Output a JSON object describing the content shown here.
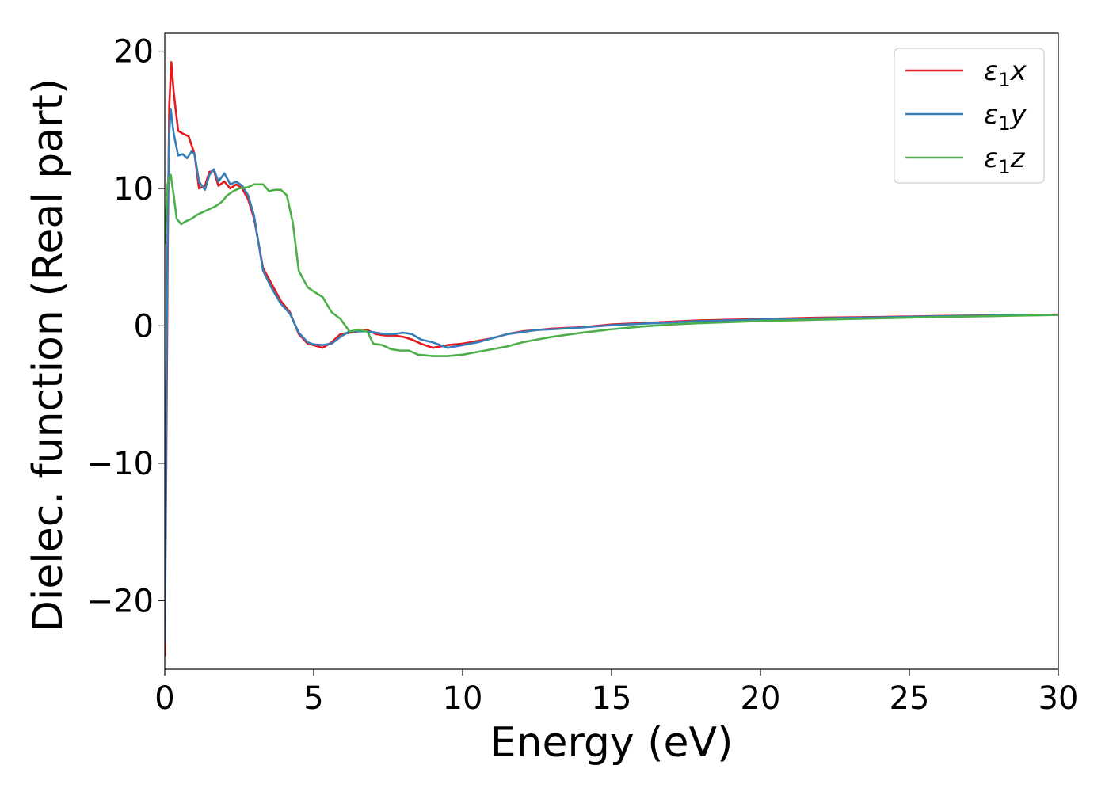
{
  "chart_data": {
    "type": "line",
    "title": "",
    "xlabel": "Energy (eV)",
    "ylabel": "Dielec. function (Real part)",
    "xlim": [
      0,
      30
    ],
    "ylim": [
      -25,
      21.3
    ],
    "xticks": [
      0,
      5,
      10,
      15,
      20,
      25,
      30
    ],
    "xtick_labels": [
      "0",
      "5",
      "10",
      "15",
      "20",
      "25",
      "30"
    ],
    "yticks": [
      -20,
      -10,
      0,
      10,
      20
    ],
    "ytick_labels": [
      "−20",
      "−10",
      "0",
      "10",
      "20"
    ],
    "grid": false,
    "legend_position": "top-right",
    "series": [
      {
        "name": "ε1x",
        "legend_base": "ε",
        "legend_sub": "1",
        "legend_var": "x",
        "color": "#e41a1c",
        "x": [
          0,
          0.05,
          0.1,
          0.15,
          0.22,
          0.3,
          0.45,
          0.6,
          0.8,
          1.0,
          1.15,
          1.35,
          1.5,
          1.65,
          1.8,
          2.0,
          2.2,
          2.4,
          2.6,
          2.8,
          3.0,
          3.3,
          3.6,
          3.9,
          4.2,
          4.5,
          4.8,
          5.0,
          5.3,
          5.6,
          5.9,
          6.2,
          6.5,
          6.8,
          7.1,
          7.4,
          7.7,
          8.0,
          8.3,
          8.6,
          9.0,
          9.5,
          10.0,
          10.5,
          11.0,
          11.5,
          12.0,
          12.5,
          13.0,
          14.0,
          15.0,
          16.0,
          17.0,
          18.0,
          20.0,
          22.0,
          24.0,
          26.0,
          28.0,
          30.0
        ],
        "y": [
          -24,
          -10,
          6,
          16,
          19.2,
          17,
          14.2,
          14,
          13.8,
          12.5,
          10,
          10.2,
          11.2,
          11.3,
          10.2,
          10.5,
          10,
          10.3,
          10,
          9.2,
          7.8,
          4.2,
          3,
          1.8,
          1,
          -0.6,
          -1.3,
          -1.4,
          -1.6,
          -1.2,
          -0.6,
          -0.5,
          -0.4,
          -0.3,
          -0.6,
          -0.7,
          -0.7,
          -0.8,
          -1.0,
          -1.3,
          -1.6,
          -1.4,
          -1.3,
          -1.1,
          -0.9,
          -0.6,
          -0.4,
          -0.3,
          -0.2,
          -0.1,
          0.1,
          0.2,
          0.3,
          0.4,
          0.5,
          0.6,
          0.65,
          0.72,
          0.78,
          0.82
        ]
      },
      {
        "name": "ε1y",
        "legend_base": "ε",
        "legend_sub": "1",
        "legend_var": "y",
        "color": "#377eb8",
        "x": [
          0,
          0.05,
          0.1,
          0.15,
          0.2,
          0.3,
          0.45,
          0.6,
          0.75,
          0.9,
          1.0,
          1.15,
          1.35,
          1.5,
          1.65,
          1.8,
          2.0,
          2.2,
          2.4,
          2.6,
          2.8,
          3.0,
          3.3,
          3.6,
          3.9,
          4.2,
          4.5,
          4.8,
          5.0,
          5.3,
          5.6,
          5.9,
          6.2,
          6.5,
          6.8,
          7.1,
          7.4,
          7.7,
          8.0,
          8.3,
          8.6,
          9.0,
          9.5,
          10.0,
          10.5,
          11.0,
          11.5,
          12.0,
          12.5,
          13.0,
          14.0,
          15.0,
          16.0,
          17.0,
          18.0,
          20.0,
          22.0,
          24.0,
          26.0,
          28.0,
          30.0
        ],
        "y": [
          -23,
          -5,
          8,
          14,
          15.8,
          14,
          12.4,
          12.5,
          12.2,
          12.7,
          12.5,
          10.5,
          9.9,
          11,
          11.4,
          10.5,
          11.1,
          10.3,
          10.5,
          10.2,
          9.5,
          8,
          4,
          2.7,
          1.6,
          0.9,
          -0.5,
          -1.2,
          -1.35,
          -1.4,
          -1.3,
          -0.8,
          -0.4,
          -0.4,
          -0.4,
          -0.5,
          -0.6,
          -0.6,
          -0.5,
          -0.6,
          -1.0,
          -1.2,
          -1.6,
          -1.4,
          -1.2,
          -0.9,
          -0.6,
          -0.45,
          -0.3,
          -0.25,
          -0.12,
          0.05,
          0.15,
          0.25,
          0.35,
          0.45,
          0.55,
          0.62,
          0.7,
          0.76,
          0.8
        ]
      },
      {
        "name": "ε1z",
        "legend_base": "ε",
        "legend_sub": "1",
        "legend_var": "z",
        "color": "#4daf4a",
        "x": [
          0,
          0.05,
          0.1,
          0.2,
          0.3,
          0.4,
          0.55,
          0.7,
          0.9,
          1.1,
          1.3,
          1.5,
          1.7,
          1.9,
          2.1,
          2.3,
          2.5,
          2.8,
          3.0,
          3.3,
          3.5,
          3.7,
          3.9,
          4.1,
          4.3,
          4.5,
          4.8,
          5.0,
          5.3,
          5.6,
          5.9,
          6.2,
          6.5,
          6.8,
          7.0,
          7.3,
          7.6,
          7.9,
          8.2,
          8.5,
          9.0,
          9.5,
          10.0,
          10.5,
          11.0,
          11.5,
          12.0,
          12.5,
          13.0,
          14.0,
          15.0,
          16.0,
          17.0,
          18.0,
          20.0,
          22.0,
          24.0,
          26.0,
          28.0,
          30.0
        ],
        "y": [
          6,
          8.5,
          10.4,
          11,
          9.5,
          7.8,
          7.4,
          7.6,
          7.8,
          8.1,
          8.3,
          8.5,
          8.7,
          9.0,
          9.5,
          9.8,
          10.0,
          10.1,
          10.3,
          10.3,
          9.8,
          9.9,
          9.9,
          9.5,
          7.5,
          4,
          2.8,
          2.5,
          2.1,
          1.0,
          0.5,
          -0.4,
          -0.3,
          -0.4,
          -1.3,
          -1.4,
          -1.7,
          -1.8,
          -1.8,
          -2.1,
          -2.2,
          -2.2,
          -2.1,
          -1.9,
          -1.7,
          -1.5,
          -1.2,
          -1.0,
          -0.8,
          -0.5,
          -0.25,
          -0.05,
          0.1,
          0.2,
          0.35,
          0.45,
          0.55,
          0.65,
          0.72,
          0.8
        ]
      }
    ]
  }
}
